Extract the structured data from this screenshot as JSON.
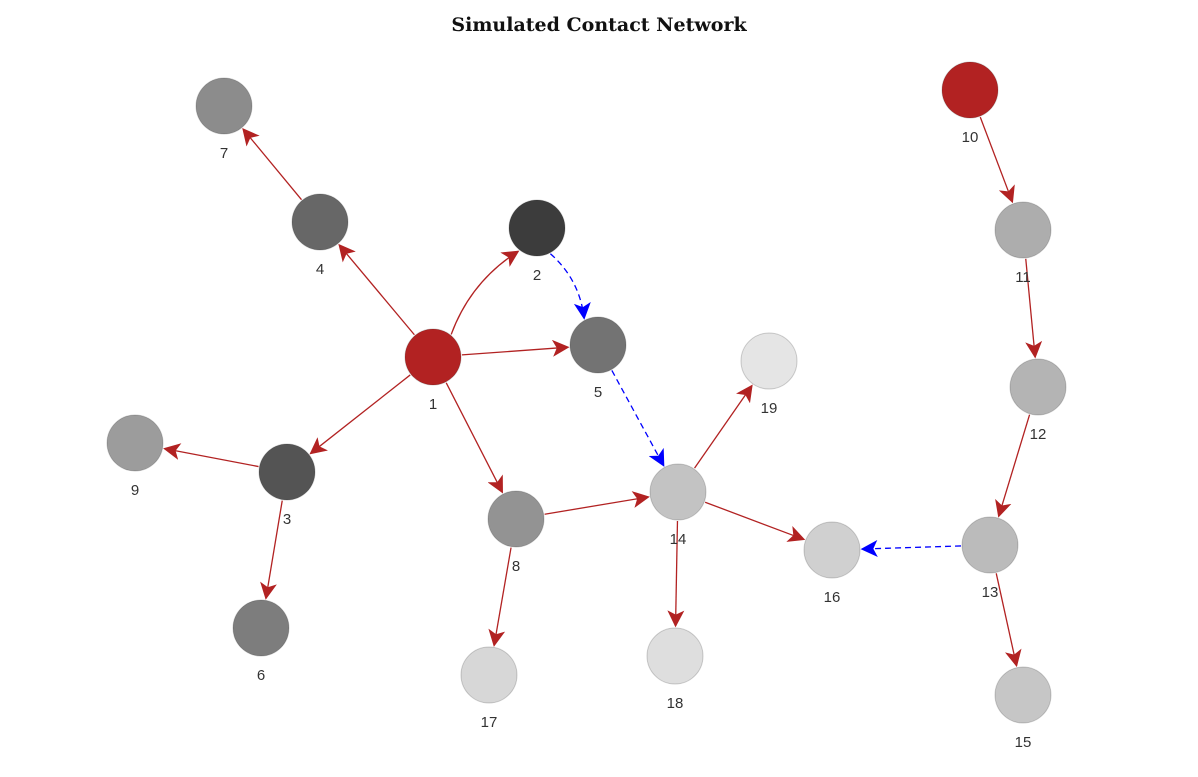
{
  "title": "Simulated Contact Network",
  "colors": {
    "infected": "#b22222",
    "edge_transmission": "#b22222",
    "edge_suspected": "#0000ff"
  },
  "nodes": [
    {
      "id": "1",
      "label": "1",
      "fill": "#b22222"
    },
    {
      "id": "2",
      "label": "2",
      "fill": "#3c3c3c"
    },
    {
      "id": "3",
      "label": "3",
      "fill": "#545454"
    },
    {
      "id": "4",
      "label": "4",
      "fill": "#676767"
    },
    {
      "id": "5",
      "label": "5",
      "fill": "#737373"
    },
    {
      "id": "6",
      "label": "6",
      "fill": "#7d7d7d"
    },
    {
      "id": "7",
      "label": "7",
      "fill": "#8c8c8c"
    },
    {
      "id": "8",
      "label": "8",
      "fill": "#939393"
    },
    {
      "id": "9",
      "label": "9",
      "fill": "#9c9c9c"
    },
    {
      "id": "10",
      "label": "10",
      "fill": "#b22222"
    },
    {
      "id": "11",
      "label": "11",
      "fill": "#adadad"
    },
    {
      "id": "12",
      "label": "12",
      "fill": "#b4b4b4"
    },
    {
      "id": "13",
      "label": "13",
      "fill": "#bbbbbb"
    },
    {
      "id": "14",
      "label": "14",
      "fill": "#c3c3c3"
    },
    {
      "id": "15",
      "label": "15",
      "fill": "#c6c6c6"
    },
    {
      "id": "16",
      "label": "16",
      "fill": "#d0d0d0"
    },
    {
      "id": "17",
      "label": "17",
      "fill": "#d7d7d7"
    },
    {
      "id": "18",
      "label": "18",
      "fill": "#dedede"
    },
    {
      "id": "19",
      "label": "19",
      "fill": "#e5e5e5"
    }
  ],
  "edges": [
    {
      "from": "1",
      "to": "2",
      "type": "transmission"
    },
    {
      "from": "1",
      "to": "5",
      "type": "transmission"
    },
    {
      "from": "1",
      "to": "4",
      "type": "transmission"
    },
    {
      "from": "1",
      "to": "3",
      "type": "transmission"
    },
    {
      "from": "1",
      "to": "8",
      "type": "transmission"
    },
    {
      "from": "4",
      "to": "7",
      "type": "transmission"
    },
    {
      "from": "3",
      "to": "9",
      "type": "transmission"
    },
    {
      "from": "3",
      "to": "6",
      "type": "transmission"
    },
    {
      "from": "2",
      "to": "5",
      "type": "suspected"
    },
    {
      "from": "5",
      "to": "14",
      "type": "suspected"
    },
    {
      "from": "8",
      "to": "14",
      "type": "transmission"
    },
    {
      "from": "8",
      "to": "17",
      "type": "transmission"
    },
    {
      "from": "14",
      "to": "19",
      "type": "transmission"
    },
    {
      "from": "14",
      "to": "18",
      "type": "transmission"
    },
    {
      "from": "14",
      "to": "16",
      "type": "transmission"
    },
    {
      "from": "10",
      "to": "11",
      "type": "transmission"
    },
    {
      "from": "11",
      "to": "12",
      "type": "transmission"
    },
    {
      "from": "12",
      "to": "13",
      "type": "transmission"
    },
    {
      "from": "13",
      "to": "16",
      "type": "suspected"
    },
    {
      "from": "13",
      "to": "15",
      "type": "transmission"
    }
  ]
}
